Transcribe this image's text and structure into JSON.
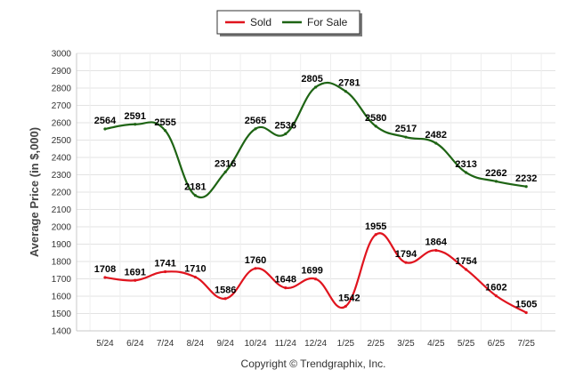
{
  "chart_data": {
    "type": "line",
    "ylabel": "Average Price (in $,000)",
    "ylim": [
      1400,
      3000
    ],
    "yticks": [
      1400,
      1500,
      1600,
      1700,
      1800,
      1900,
      2000,
      2100,
      2200,
      2300,
      2400,
      2500,
      2600,
      2700,
      2800,
      2900,
      3000
    ],
    "categories": [
      "5/24",
      "6/24",
      "7/24",
      "8/24",
      "9/24",
      "10/24",
      "11/24",
      "12/24",
      "1/25",
      "2/25",
      "3/25",
      "4/25",
      "5/25",
      "6/25",
      "7/25"
    ],
    "grid": true,
    "legend_position": "top-center",
    "series": [
      {
        "name": "Sold",
        "color": "#e0141e",
        "values": [
          1708,
          1691,
          1741,
          1710,
          1586,
          1760,
          1648,
          1699,
          1542,
          1955,
          1794,
          1864,
          1754,
          1602,
          1505
        ]
      },
      {
        "name": "For Sale",
        "color": "#1e6414",
        "values": [
          2564,
          2591,
          2555,
          2181,
          2316,
          2565,
          2536,
          2805,
          2781,
          2580,
          2517,
          2482,
          2313,
          2262,
          2232
        ]
      }
    ]
  },
  "footer": {
    "copyright": "Copyright © Trendgraphix, Inc."
  }
}
